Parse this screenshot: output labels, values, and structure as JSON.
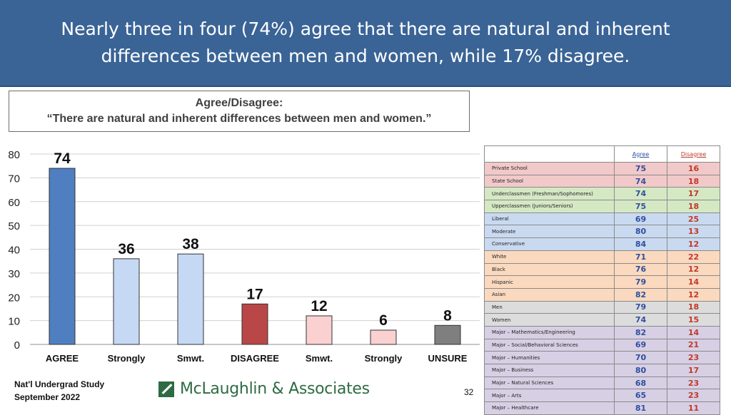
{
  "header": {
    "title": "Nearly three in four (74%) agree that there are natural and inherent differences between men and women, while 17% disagree."
  },
  "question": {
    "line1": "Agree/Disagree:",
    "line2": "“There are natural and inherent differences between men and women.”"
  },
  "chart_data": {
    "type": "bar",
    "categories": [
      "AGREE",
      "Strongly",
      "Smwt.",
      "DISAGREE",
      "Smwt.",
      "Strongly",
      "UNSURE"
    ],
    "values": [
      74,
      36,
      38,
      17,
      12,
      6,
      8
    ],
    "data_labels": [
      "74",
      "36",
      "38",
      "17",
      "12",
      "6",
      "8"
    ],
    "ylim": [
      0,
      80
    ],
    "yticks": [
      0,
      10,
      20,
      30,
      40,
      50,
      60,
      70,
      80
    ],
    "grid": true,
    "colors": [
      "#4f7fc0",
      "#c5d9f4",
      "#c5d9f4",
      "#b94747",
      "#fbd0d0",
      "#fbd0d0",
      "#7f7f7f"
    ]
  },
  "table": {
    "col_agree": "Agree",
    "col_disagree": "Disagree",
    "rows": [
      {
        "label": "Private School",
        "agree": "75",
        "disagree": "16",
        "color": "#f2c9c9"
      },
      {
        "label": "State School",
        "agree": "74",
        "disagree": "18",
        "color": "#f2c9c9"
      },
      {
        "label": "Underclassmen (Freshman/Sophomores)",
        "agree": "74",
        "disagree": "17",
        "color": "#d5e8c4"
      },
      {
        "label": "Upperclassmen (Juniors/Seniors)",
        "agree": "75",
        "disagree": "18",
        "color": "#d5e8c4"
      },
      {
        "label": "Liberal",
        "agree": "69",
        "disagree": "25",
        "color": "#c9daf0"
      },
      {
        "label": "Moderate",
        "agree": "80",
        "disagree": "13",
        "color": "#c9daf0"
      },
      {
        "label": "Conservative",
        "agree": "84",
        "disagree": "12",
        "color": "#c9daf0"
      },
      {
        "label": "White",
        "agree": "71",
        "disagree": "22",
        "color": "#fad9bf"
      },
      {
        "label": "Black",
        "agree": "76",
        "disagree": "12",
        "color": "#fad9bf"
      },
      {
        "label": "Hispanic",
        "agree": "79",
        "disagree": "14",
        "color": "#fad9bf"
      },
      {
        "label": "Asian",
        "agree": "82",
        "disagree": "12",
        "color": "#fad9bf"
      },
      {
        "label": "Men",
        "agree": "79",
        "disagree": "18",
        "color": "#dcdcdc"
      },
      {
        "label": "Women",
        "agree": "74",
        "disagree": "15",
        "color": "#dcdcdc"
      },
      {
        "label": "Major – Mathematics/Engineering",
        "agree": "82",
        "disagree": "14",
        "color": "#d7cfe4"
      },
      {
        "label": "Major – Social/Behavioral Sciences",
        "agree": "69",
        "disagree": "21",
        "color": "#d7cfe4"
      },
      {
        "label": "Major – Humanities",
        "agree": "70",
        "disagree": "23",
        "color": "#d7cfe4"
      },
      {
        "label": "Major – Business",
        "agree": "80",
        "disagree": "17",
        "color": "#d7cfe4"
      },
      {
        "label": "Major – Natural Sciences",
        "agree": "68",
        "disagree": "23",
        "color": "#d7cfe4"
      },
      {
        "label": "Major – Arts",
        "agree": "65",
        "disagree": "23",
        "color": "#d7cfe4"
      },
      {
        "label": "Major – Healthcare",
        "agree": "81",
        "disagree": "11",
        "color": "#d7cfe4"
      }
    ]
  },
  "footer": {
    "source_line1": "Nat'l Undergrad Study",
    "source_line2": "September 2022",
    "logo_text": "McLaughlin & Associates",
    "page_number": "32"
  }
}
